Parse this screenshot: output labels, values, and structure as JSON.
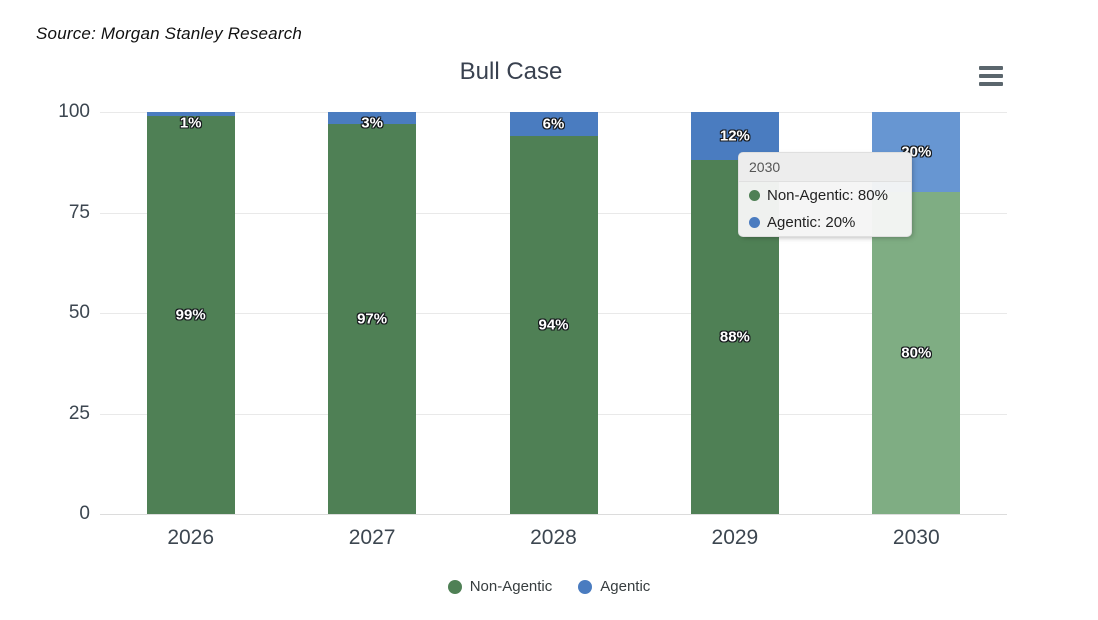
{
  "source_note": "Source: Morgan Stanley Research",
  "title": "Bull Case",
  "menu": {
    "icon": "hamburger-icon"
  },
  "chart_data": {
    "type": "bar",
    "stacked": true,
    "title": "Bull Case",
    "categories": [
      "2026",
      "2027",
      "2028",
      "2029",
      "2030"
    ],
    "series": [
      {
        "name": "Non-Agentic",
        "color": "#4f8055",
        "hover_color": "#7fad83",
        "values": [
          99,
          97,
          94,
          88,
          80
        ]
      },
      {
        "name": "Agentic",
        "color": "#4a7cc0",
        "hover_color": "#6796d2",
        "values": [
          1,
          3,
          6,
          12,
          20
        ]
      }
    ],
    "data_label_suffix": "%",
    "ylim": [
      0,
      100
    ],
    "yticks": [
      0,
      25,
      50,
      75,
      100
    ],
    "grid": true,
    "legend_position": "bottom",
    "highlighted_category": "2030"
  },
  "tooltip": {
    "title": "2030",
    "rows": [
      {
        "label": "Non-Agentic",
        "value": "80%",
        "color": "#4f8055"
      },
      {
        "label": "Agentic",
        "value": "20%",
        "color": "#4a7cc0"
      }
    ]
  },
  "legend": {
    "items": [
      {
        "label": "Non-Agentic",
        "color": "#4f8055"
      },
      {
        "label": "Agentic",
        "color": "#4a7cc0"
      }
    ]
  }
}
